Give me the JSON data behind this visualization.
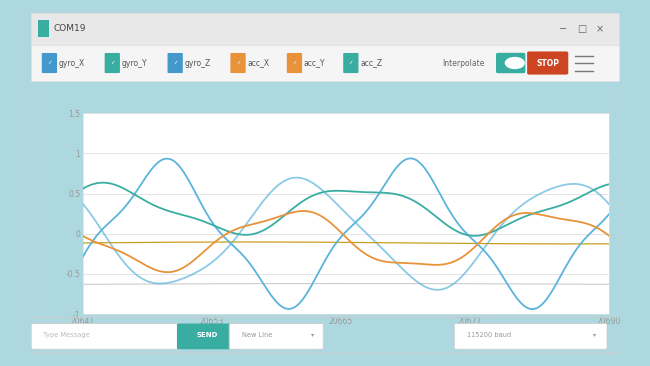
{
  "bg_outer": "#aed8df",
  "bg_window": "#f2f2f2",
  "bg_plot": "#ffffff",
  "title_bar_bg": "#e8e8e8",
  "title_bar_text": "COM19",
  "title_bar_color": "#666666",
  "toolbar_bg": "#f5f5f5",
  "legend_labels": [
    "gyro_X",
    "gyro_Y",
    "gyro_Z",
    "acc_X",
    "acc_Y",
    "acc_Z"
  ],
  "legend_colors": [
    "#4499cc",
    "#3aada3",
    "#4499cc",
    "#e8923a",
    "#e8923a",
    "#3aada3"
  ],
  "xmin": 20641,
  "xmax": 20690,
  "xticks": [
    20641,
    20653,
    20665,
    20677,
    20690
  ],
  "xtick_labels": [
    "20641",
    "20653",
    "20665",
    "20677",
    "20690"
  ],
  "ymin": -1.0,
  "ymax": 1.5,
  "yticks": [
    -1.0,
    -0.5,
    0.0,
    0.5,
    1.0,
    1.5
  ],
  "grid_color": "#e0e0e0",
  "line_gyro_X_color": "#5ab4dc",
  "line_gyro_Y_color": "#3aada3",
  "line_acc_X_color": "#e8923a",
  "line_acc_Y_color": "#c8a020",
  "line_acc_Z_color": "#bbbbbb",
  "line_flat1_color": "#cccccc",
  "stop_btn_color": "#cc4422",
  "send_btn_color": "#3aada3",
  "toggle_color": "#3aada3",
  "bottom_bar_bg": "#e8e8e8",
  "window_border": "#cccccc"
}
